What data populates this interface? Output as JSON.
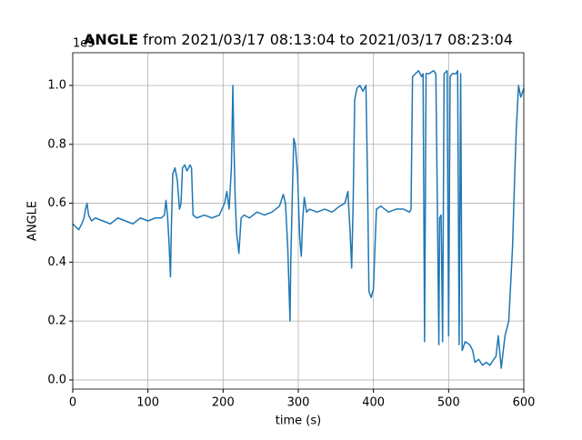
{
  "chart_data": {
    "type": "line",
    "title_bold": "ANGLE",
    "title": "from 2021/03/17 08:13:04 to 2021/03/17 08:23:04",
    "offset_label": "1e9",
    "x_label": "time (s)",
    "y_label": "ANGLE",
    "xlim": [
      0,
      600
    ],
    "ylim": [
      -0.031,
      1.111
    ],
    "xticks": [
      0,
      100,
      200,
      300,
      400,
      500,
      600
    ],
    "yticks": [
      {
        "value": 0,
        "label": "0.0"
      },
      {
        "value": 0.2,
        "label": "0.2"
      },
      {
        "value": 0.4,
        "label": "0.4"
      },
      {
        "value": 0.6,
        "label": "0.6"
      },
      {
        "value": 0.8,
        "label": "0.8"
      },
      {
        "value": 1.0,
        "label": "1.0"
      }
    ],
    "grid": true,
    "color": "#1f77b4",
    "x": [
      0,
      4,
      8,
      12,
      15,
      17,
      19,
      21,
      25,
      30,
      40,
      50,
      60,
      70,
      80,
      90,
      100,
      110,
      118,
      122,
      124,
      126,
      128,
      130,
      131,
      133,
      136,
      139,
      142,
      144,
      146,
      149,
      152,
      156,
      158,
      160,
      165,
      175,
      185,
      195,
      202,
      205,
      208,
      211,
      213,
      214,
      216,
      218,
      221,
      224,
      228,
      235,
      245,
      255,
      265,
      275,
      280,
      283,
      286,
      289,
      290,
      292,
      294,
      296,
      299,
      302,
      304,
      306,
      308,
      311,
      315,
      325,
      335,
      345,
      355,
      362,
      366,
      369,
      371,
      373,
      375,
      378,
      382,
      386,
      390,
      392,
      394,
      397,
      400,
      402,
      404,
      410,
      420,
      430,
      440,
      448,
      450,
      452,
      456,
      460,
      464,
      466,
      468,
      470,
      474,
      480,
      483,
      485,
      487,
      488,
      490,
      492,
      494,
      498,
      500,
      502,
      505,
      510,
      512,
      514,
      516,
      518,
      522,
      528,
      532,
      535,
      540,
      545,
      550,
      555,
      560,
      563,
      566,
      570,
      575,
      580,
      585,
      588,
      590,
      593,
      596,
      600
    ],
    "values": [
      0.53,
      0.52,
      0.51,
      0.53,
      0.55,
      0.58,
      0.6,
      0.56,
      0.54,
      0.55,
      0.54,
      0.53,
      0.55,
      0.54,
      0.53,
      0.55,
      0.54,
      0.55,
      0.55,
      0.56,
      0.61,
      0.56,
      0.47,
      0.35,
      0.5,
      0.7,
      0.72,
      0.68,
      0.58,
      0.6,
      0.72,
      0.73,
      0.71,
      0.73,
      0.72,
      0.56,
      0.55,
      0.56,
      0.55,
      0.56,
      0.6,
      0.64,
      0.58,
      0.72,
      1.0,
      0.85,
      0.62,
      0.5,
      0.43,
      0.55,
      0.56,
      0.55,
      0.57,
      0.56,
      0.57,
      0.59,
      0.63,
      0.6,
      0.45,
      0.2,
      0.4,
      0.62,
      0.82,
      0.8,
      0.7,
      0.48,
      0.42,
      0.55,
      0.62,
      0.57,
      0.58,
      0.57,
      0.58,
      0.57,
      0.59,
      0.6,
      0.64,
      0.5,
      0.38,
      0.6,
      0.95,
      0.99,
      1.0,
      0.98,
      1.0,
      0.7,
      0.3,
      0.28,
      0.31,
      0.45,
      0.58,
      0.59,
      0.57,
      0.58,
      0.58,
      0.57,
      0.58,
      1.03,
      1.04,
      1.05,
      1.03,
      1.04,
      0.13,
      1.04,
      1.04,
      1.05,
      1.04,
      0.6,
      0.12,
      0.55,
      0.56,
      0.13,
      1.04,
      1.05,
      0.15,
      1.03,
      1.04,
      1.04,
      1.05,
      0.12,
      1.04,
      0.1,
      0.13,
      0.12,
      0.1,
      0.06,
      0.07,
      0.05,
      0.06,
      0.05,
      0.07,
      0.08,
      0.15,
      0.04,
      0.15,
      0.2,
      0.45,
      0.7,
      0.85,
      1.0,
      0.96,
      0.99
    ]
  }
}
